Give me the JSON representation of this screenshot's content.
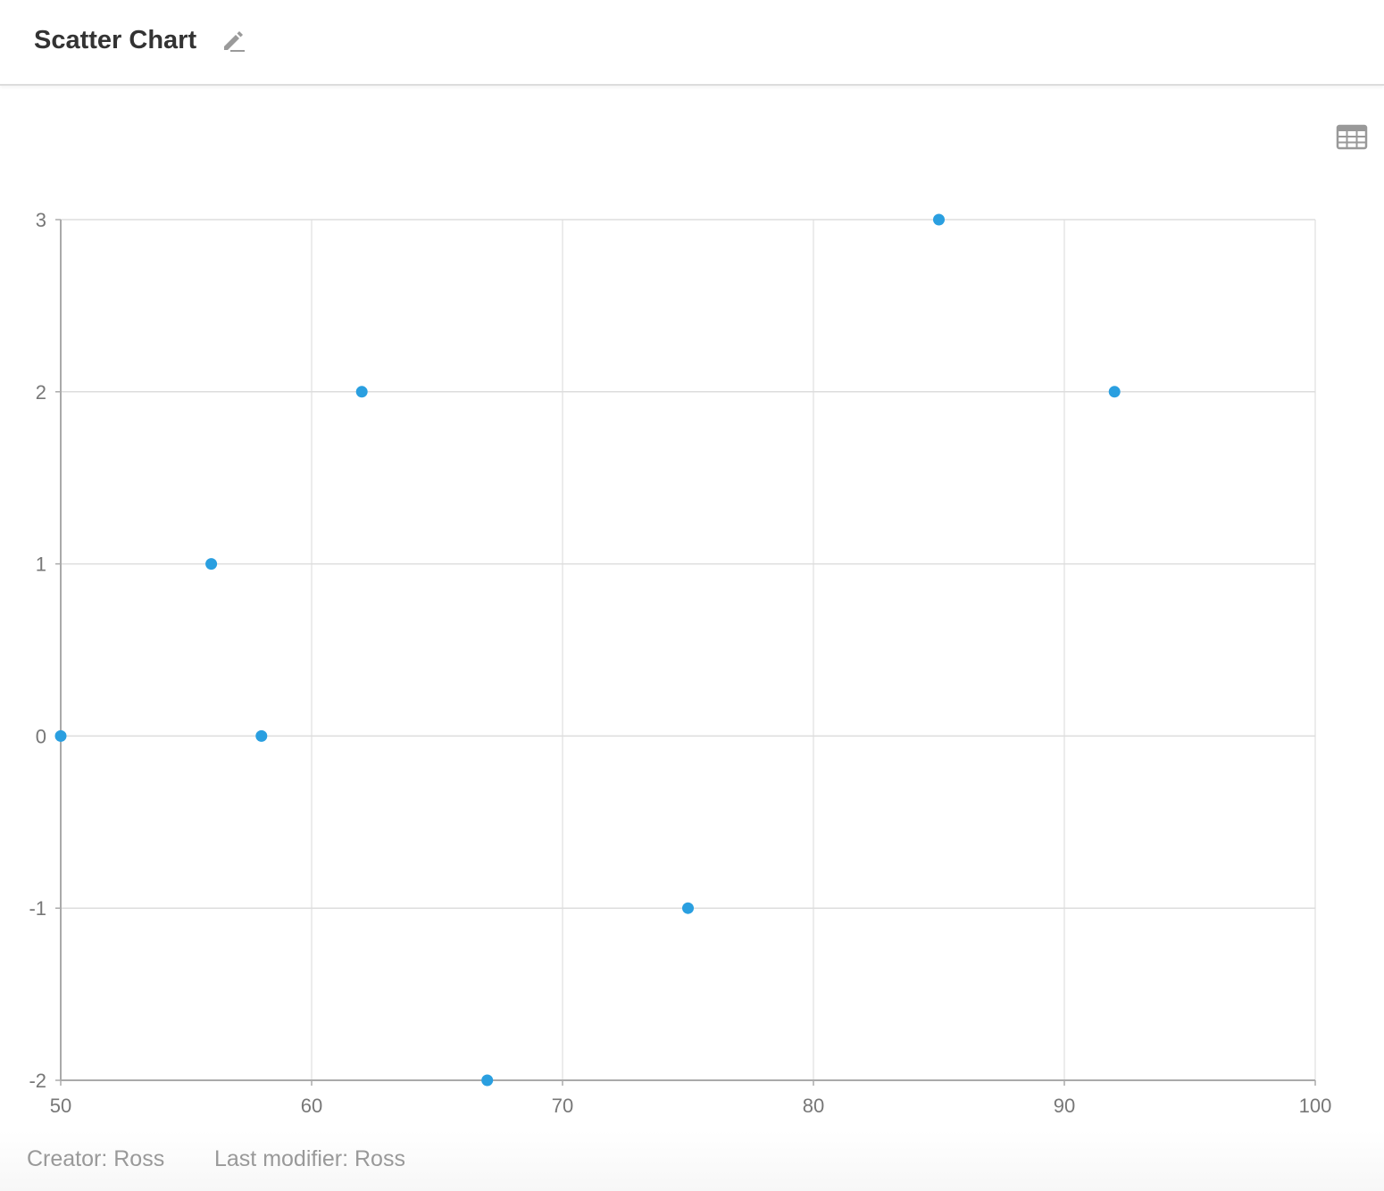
{
  "header": {
    "title": "Scatter Chart"
  },
  "icons": {
    "edit": "pencil-icon",
    "table": "table-grid-icon"
  },
  "footer": {
    "creator": "Creator: Ross",
    "modifier": "Last modifier: Ross"
  },
  "colors": {
    "point": "#2a9fe0",
    "grid": "#e6e6e6",
    "axis": "#aaaaaa",
    "tick_text": "#777777"
  },
  "chart_data": {
    "type": "scatter",
    "title": "",
    "xlabel": "",
    "ylabel": "",
    "xlim": [
      50,
      100
    ],
    "ylim": [
      -2,
      3
    ],
    "x_ticks": [
      50,
      60,
      70,
      80,
      90,
      100
    ],
    "y_ticks": [
      -2,
      -1,
      0,
      1,
      2,
      3
    ],
    "grid": true,
    "legend": "none",
    "series": [
      {
        "points": [
          {
            "x": 50,
            "y": 0
          },
          {
            "x": 56,
            "y": 1
          },
          {
            "x": 58,
            "y": 0
          },
          {
            "x": 62,
            "y": 2
          },
          {
            "x": 67,
            "y": -2
          },
          {
            "x": 75,
            "y": -1
          },
          {
            "x": 85,
            "y": 3
          },
          {
            "x": 92,
            "y": 2
          }
        ]
      }
    ]
  }
}
